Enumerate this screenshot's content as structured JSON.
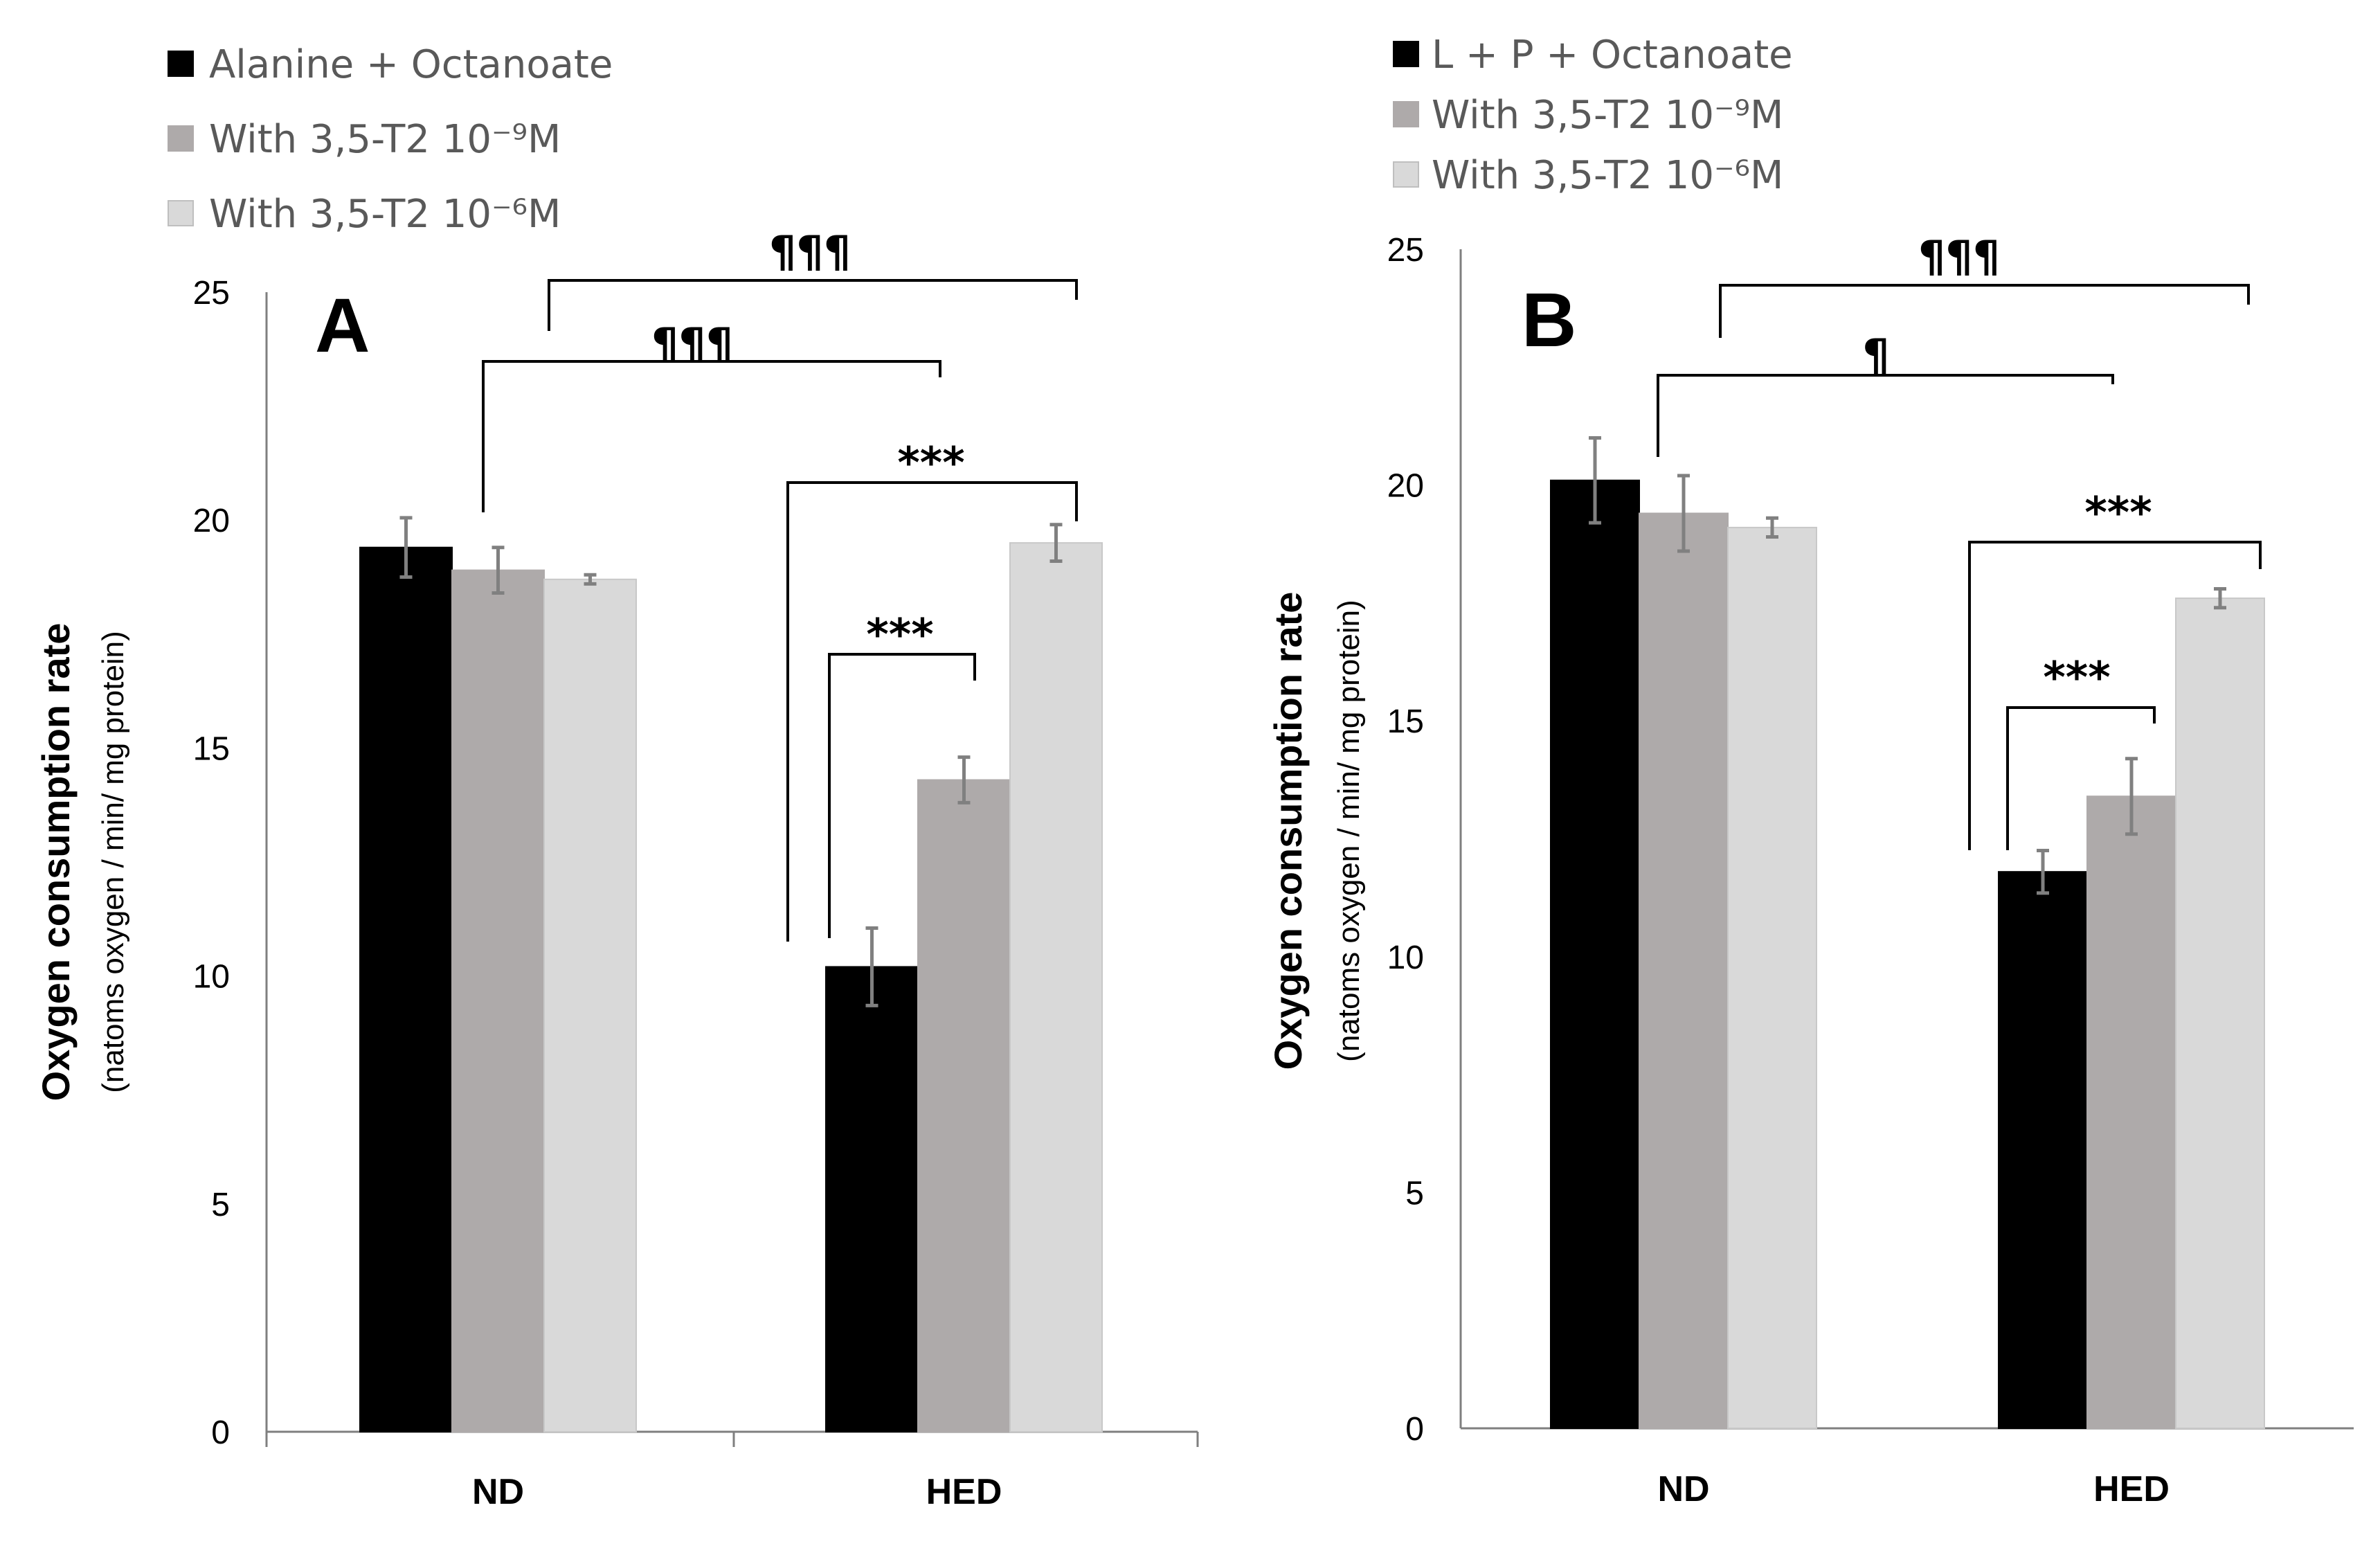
{
  "chart_data": [
    {
      "type": "bar",
      "panel_label": "A",
      "categories": [
        "ND",
        "HED"
      ],
      "series": [
        {
          "name": "Alanine + Octanoate",
          "color": "#000000",
          "values": [
            19.4,
            10.2
          ],
          "errors": [
            0.65,
            0.85
          ]
        },
        {
          "name": "With 3,5-T2 10⁻⁹M",
          "color": "#aeaaaa",
          "values": [
            18.9,
            14.3
          ],
          "errors": [
            0.5,
            0.5
          ]
        },
        {
          "name": "With 3,5-T2 10⁻⁶M",
          "color": "#d9d9d9",
          "values": [
            18.7,
            19.5
          ],
          "errors": [
            0.1,
            0.4
          ]
        }
      ],
      "ylabel": "Oxygen consumption rate",
      "ylabel_sub": "(natoms oxygen / min/ mg protein)",
      "ylim": [
        0,
        25
      ],
      "yticks": [
        0,
        5,
        10,
        15,
        20,
        25
      ],
      "grid": false,
      "legend_position": "top-left",
      "significance": [
        {
          "label": "***",
          "from": "HED:0",
          "to": "HED:1"
        },
        {
          "label": "***",
          "from": "HED:0",
          "to": "HED:2"
        },
        {
          "label": "¶¶¶",
          "from": "ND:0",
          "to": "HED:0"
        },
        {
          "label": "¶¶¶",
          "from": "ND:1",
          "to": "HED:2"
        }
      ]
    },
    {
      "type": "bar",
      "panel_label": "B",
      "categories": [
        "ND",
        "HED"
      ],
      "series": [
        {
          "name": "L + P + Octanoate",
          "color": "#000000",
          "values": [
            20.1,
            11.8
          ],
          "errors": [
            0.9,
            0.45
          ]
        },
        {
          "name": "With 3,5-T2 10⁻⁹M",
          "color": "#aeaaaa",
          "values": [
            19.4,
            13.4
          ],
          "errors": [
            0.8,
            0.8
          ]
        },
        {
          "name": "With 3,5-T2 10⁻⁶M",
          "color": "#d9d9d9",
          "values": [
            19.1,
            17.6
          ],
          "errors": [
            0.2,
            0.2
          ]
        }
      ],
      "ylabel": "Oxygen consumption rate",
      "ylabel_sub": "(natoms oxygen / min/ mg protein)",
      "ylim": [
        0,
        25
      ],
      "yticks": [
        0,
        5,
        10,
        15,
        20,
        25
      ],
      "grid": false,
      "legend_position": "top-left",
      "significance": [
        {
          "label": "***",
          "from": "HED:0",
          "to": "HED:1"
        },
        {
          "label": "***",
          "from": "HED:0",
          "to": "HED:2"
        },
        {
          "label": "¶",
          "from": "ND:1",
          "to": "HED:0"
        },
        {
          "label": "¶¶¶",
          "from": "ND:2",
          "to": "HED:2"
        }
      ]
    }
  ]
}
